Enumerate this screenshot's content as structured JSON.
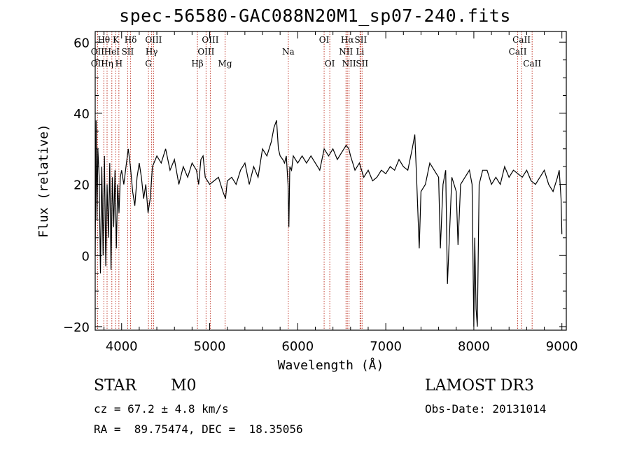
{
  "header": {
    "title": "spec-56580-GAC088N20M1_sp07-240.fits"
  },
  "footer": {
    "class_label": "STAR",
    "subclass": "M0",
    "survey": "LAMOST DR3",
    "cz": "cz = 67.2 ± 4.8 km/s",
    "obs_date": "Obs-Date: 20131014",
    "radec": "RA =  89.75474, DEC =  18.35056"
  },
  "chart_data": {
    "type": "line",
    "title": "spec-56580-GAC088N20M1_sp07-240.fits",
    "xlabel": "Wavelength (Å)",
    "ylabel": "Flux (relative)",
    "xlim": [
      3700,
      9050
    ],
    "ylim": [
      -21,
      63
    ],
    "xticks": [
      4000,
      5000,
      6000,
      7000,
      8000,
      9000
    ],
    "yticks": [
      -20,
      0,
      20,
      40,
      60
    ],
    "series": [
      {
        "name": "flux",
        "x": [
          3700,
          3710,
          3720,
          3730,
          3745,
          3760,
          3775,
          3790,
          3805,
          3820,
          3835,
          3850,
          3865,
          3880,
          3895,
          3910,
          3925,
          3940,
          3955,
          3970,
          3985,
          4000,
          4025,
          4050,
          4075,
          4100,
          4125,
          4150,
          4175,
          4200,
          4225,
          4250,
          4275,
          4300,
          4325,
          4350,
          4400,
          4450,
          4500,
          4550,
          4600,
          4650,
          4700,
          4750,
          4800,
          4850,
          4875,
          4900,
          4925,
          4950,
          5000,
          5050,
          5100,
          5150,
          5180,
          5200,
          5250,
          5300,
          5350,
          5400,
          5450,
          5500,
          5550,
          5600,
          5650,
          5700,
          5730,
          5760,
          5780,
          5800,
          5830,
          5850,
          5870,
          5890,
          5900,
          5910,
          5930,
          5950,
          6000,
          6050,
          6100,
          6150,
          6200,
          6250,
          6300,
          6350,
          6400,
          6450,
          6500,
          6550,
          6580,
          6600,
          6650,
          6700,
          6750,
          6800,
          6850,
          6900,
          6950,
          7000,
          7050,
          7100,
          7150,
          7200,
          7250,
          7300,
          7330,
          7350,
          7380,
          7400,
          7450,
          7500,
          7550,
          7600,
          7620,
          7650,
          7680,
          7700,
          7750,
          7800,
          7820,
          7850,
          7900,
          7950,
          7980,
          8000,
          8010,
          8025,
          8040,
          8060,
          8100,
          8150,
          8200,
          8250,
          8300,
          8350,
          8400,
          8450,
          8500,
          8550,
          8600,
          8650,
          8700,
          8750,
          8800,
          8850,
          8900,
          8950,
          8970,
          8990,
          9000
        ],
        "y": [
          0,
          38,
          10,
          30,
          22,
          -5,
          25,
          0,
          28,
          -3,
          20,
          5,
          26,
          -4,
          22,
          8,
          24,
          2,
          20,
          12,
          22,
          24,
          20,
          25,
          30,
          25,
          18,
          14,
          22,
          26,
          22,
          16,
          20,
          12,
          16,
          25,
          28,
          26,
          30,
          24,
          27,
          20,
          25,
          22,
          26,
          24,
          20,
          27,
          28,
          22,
          20,
          21,
          22,
          18,
          16,
          21,
          22,
          20,
          24,
          26,
          20,
          25,
          22,
          30,
          28,
          32,
          36,
          38,
          30,
          28,
          27,
          26,
          28,
          20,
          8,
          25,
          24,
          28,
          26,
          28,
          26,
          28,
          26,
          24,
          30,
          28,
          30,
          27,
          29,
          31,
          30,
          28,
          24,
          26,
          22,
          24,
          21,
          22,
          24,
          23,
          25,
          24,
          27,
          25,
          24,
          30,
          34,
          22,
          2,
          18,
          20,
          26,
          24,
          22,
          2,
          20,
          24,
          -8,
          22,
          18,
          3,
          20,
          22,
          24,
          20,
          -20,
          5,
          -15,
          -20,
          20,
          24,
          24,
          20,
          22,
          20,
          25,
          22,
          24,
          23,
          22,
          24,
          21,
          20,
          22,
          24,
          20,
          18,
          22,
          24,
          16,
          6
        ]
      }
    ],
    "emission_lines": [
      {
        "label": "OII",
        "wavelength": 3727,
        "row": 2
      },
      {
        "label": "OII",
        "wavelength": 3727,
        "row": 3
      },
      {
        "label": "Hθ",
        "wavelength": 3798,
        "row": 1
      },
      {
        "label": "Hη",
        "wavelength": 3835,
        "row": 3
      },
      {
        "label": "K",
        "wavelength": 3934,
        "row": 1
      },
      {
        "label": "HeI",
        "wavelength": 3889,
        "row": 2
      },
      {
        "label": "H",
        "wavelength": 3969,
        "row": 3
      },
      {
        "label": "SII",
        "wavelength": 4069,
        "row": 2
      },
      {
        "label": "Hδ",
        "wavelength": 4102,
        "row": 1
      },
      {
        "label": "OIII",
        "wavelength": 4363,
        "row": 1
      },
      {
        "label": "Hγ",
        "wavelength": 4341,
        "row": 2
      },
      {
        "label": "G",
        "wavelength": 4305,
        "row": 3
      },
      {
        "label": "Hβ",
        "wavelength": 4861,
        "row": 3
      },
      {
        "label": "OIII",
        "wavelength": 5007,
        "row": 1
      },
      {
        "label": "OIII",
        "wavelength": 4959,
        "row": 2
      },
      {
        "label": "Mg",
        "wavelength": 5175,
        "row": 3
      },
      {
        "label": "Na",
        "wavelength": 5893,
        "row": 2
      },
      {
        "label": "OI",
        "wavelength": 6300,
        "row": 1
      },
      {
        "label": "OI",
        "wavelength": 6364,
        "row": 3
      },
      {
        "label": "Hα",
        "wavelength": 6563,
        "row": 1
      },
      {
        "label": "SII",
        "wavelength": 6716,
        "row": 1
      },
      {
        "label": "NII",
        "wavelength": 6548,
        "row": 2
      },
      {
        "label": "Li",
        "wavelength": 6708,
        "row": 2
      },
      {
        "label": "NII",
        "wavelength": 6583,
        "row": 3
      },
      {
        "label": "SII",
        "wavelength": 6731,
        "row": 3
      },
      {
        "label": "CaII",
        "wavelength": 8542,
        "row": 1
      },
      {
        "label": "CaII",
        "wavelength": 8498,
        "row": 2
      },
      {
        "label": "CaII",
        "wavelength": 8662,
        "row": 3
      }
    ],
    "line_color": "#c0392b"
  }
}
